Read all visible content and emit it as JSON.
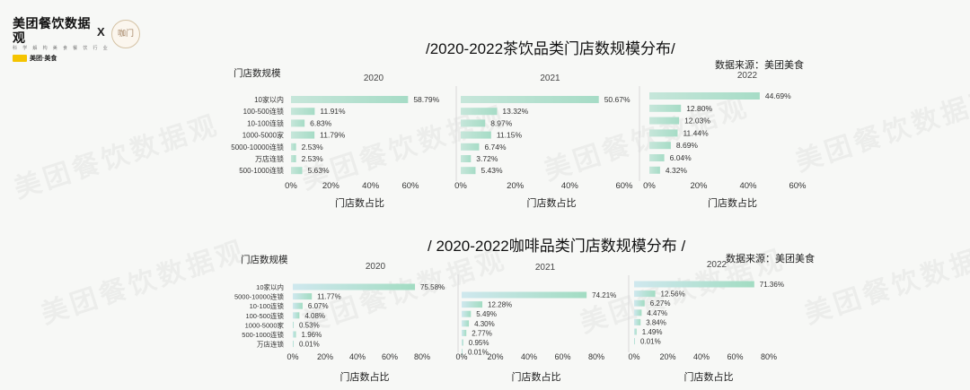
{
  "header": {
    "logo_title": "美团餐饮数据观",
    "logo_sub": "科 学 解 构 美 食 餐 饮 行 业",
    "brand": "美团·美食",
    "x_mark": "X",
    "partner": "咖门"
  },
  "watermark": "美团餐饮数据观",
  "sections": [
    {
      "title": "/2020-2022茶饮品类门店数规模分布/",
      "source": "数据来源：美团美食",
      "y_title": "门店数规模",
      "x_title": "门店数占比"
    },
    {
      "title": "/ 2020-2022咖啡品类门店数规模分布 /",
      "source": "数据来源：美团美食",
      "y_title": "门店数规模",
      "x_title": "门店数占比"
    }
  ],
  "chart_data": [
    {
      "type": "bar",
      "orientation": "horizontal",
      "title": "/2020-2022茶饮品类门店数规模分布/",
      "ylabel": "门店数规模",
      "xlabel": "门店数占比",
      "xlim": [
        0,
        60
      ],
      "ticks": [
        "0%",
        "20%",
        "40%",
        "60%"
      ],
      "panels": [
        {
          "year": "2020",
          "categories": [
            "10家以内",
            "100-500连锁",
            "10-100连锁",
            "1000-5000家",
            "5000-10000连锁",
            "万店连锁",
            "500-1000连锁"
          ],
          "values": [
            58.79,
            11.91,
            6.83,
            11.79,
            2.53,
            2.53,
            5.63
          ],
          "labels": [
            "58.79%",
            "11.91%",
            "6.83%",
            "11.79%",
            "2.53%",
            "2.53%",
            "5.63%"
          ]
        },
        {
          "year": "2021",
          "values": [
            50.67,
            13.32,
            8.97,
            11.15,
            6.74,
            3.72,
            5.43
          ],
          "labels": [
            "50.67%",
            "13.32%",
            "8.97%",
            "11.15%",
            "6.74%",
            "3.72%",
            "5.43%"
          ]
        },
        {
          "year": "2022",
          "values": [
            44.69,
            12.8,
            12.03,
            11.44,
            8.69,
            6.04,
            4.32
          ],
          "labels": [
            "44.69%",
            "12.80%",
            "12.03%",
            "11.44%",
            "8.69%",
            "6.04%",
            "4.32%"
          ]
        }
      ]
    },
    {
      "type": "bar",
      "orientation": "horizontal",
      "title": "/ 2020-2022咖啡品类门店数规模分布 /",
      "ylabel": "门店数规模",
      "xlabel": "门店数占比",
      "xlim": [
        0,
        80
      ],
      "ticks": [
        "0%",
        "20%",
        "40%",
        "60%",
        "80%"
      ],
      "panels": [
        {
          "year": "2020",
          "categories": [
            "10家以内",
            "5000-10000连锁",
            "10-100连锁",
            "100-500连锁",
            "1000-5000家",
            "500-1000连锁",
            "万店连锁"
          ],
          "values": [
            75.58,
            11.77,
            6.07,
            4.08,
            0.53,
            1.96,
            0.01
          ],
          "labels": [
            "75.58%",
            "11.77%",
            "6.07%",
            "4.08%",
            "0.53%",
            "1.96%",
            "0.01%"
          ]
        },
        {
          "year": "2021",
          "values": [
            74.21,
            12.28,
            5.49,
            4.3,
            2.77,
            0.95,
            0.01
          ],
          "labels": [
            "74.21%",
            "12.28%",
            "5.49%",
            "4.30%",
            "2.77%",
            "0.95%",
            "0.01%"
          ]
        },
        {
          "year": "2022",
          "values": [
            71.36,
            12.56,
            6.27,
            4.47,
            3.84,
            1.49,
            0.01
          ],
          "labels": [
            "71.36%",
            "12.56%",
            "6.27%",
            "4.47%",
            "3.84%",
            "1.49%",
            "0.01%"
          ]
        }
      ]
    }
  ]
}
